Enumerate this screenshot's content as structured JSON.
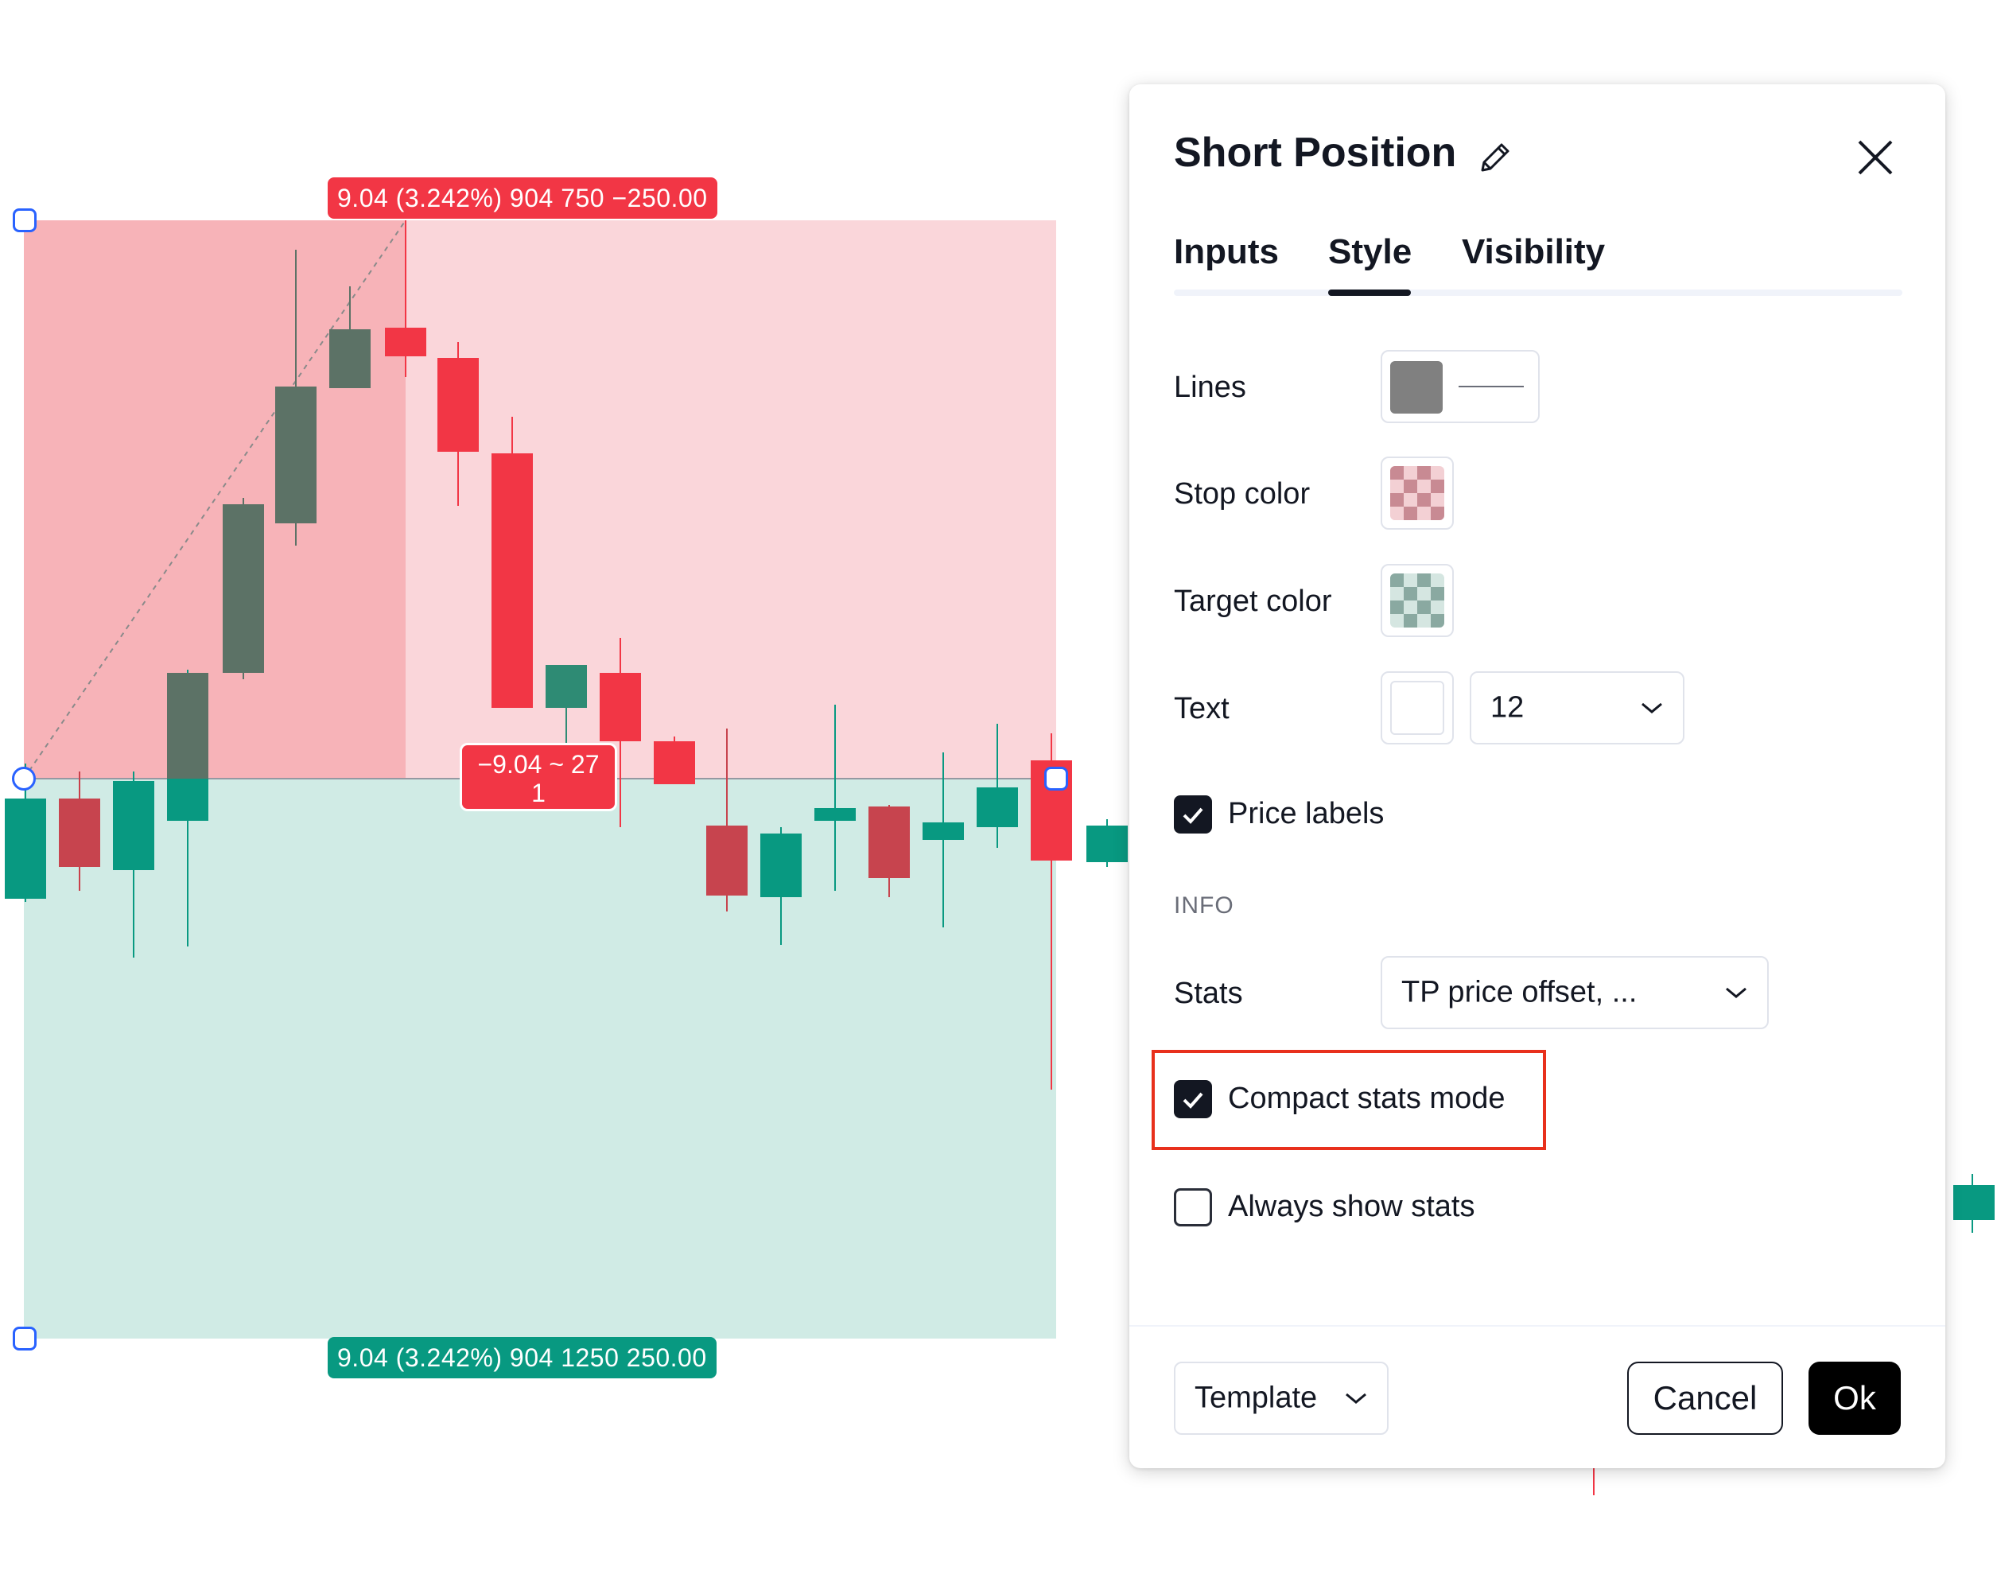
{
  "chart": {
    "stop_label": "9.04 (3.242%) 904 750 −250.00",
    "target_label": "9.04 (3.242%) 904 1250 250.00",
    "center_label_line1": "−9.04 ~ 27",
    "center_label_line2": "1",
    "colors": {
      "stop_zone": "#f7b3b8",
      "stop_zone_light": "#fad6da",
      "target_zone": "#d0ebe5",
      "bull": "#089981",
      "bear": "#f23645",
      "handle": "#2962ff"
    }
  },
  "dialog": {
    "title": "Short Position",
    "edit_icon": "pencil-icon",
    "close_icon": "close-icon",
    "tabs": [
      {
        "label": "Inputs",
        "active": false
      },
      {
        "label": "Style",
        "active": true
      },
      {
        "label": "Visibility",
        "active": false
      }
    ],
    "lines_label": "Lines",
    "lines_color": "#808080",
    "stop_color_label": "Stop color",
    "stop_color": "#f23645",
    "target_color_label": "Target color",
    "target_color": "#089981",
    "text_label": "Text",
    "text_color": "#ffffff",
    "text_size": "12",
    "price_labels": {
      "label": "Price labels",
      "checked": true
    },
    "info_heading": "INFO",
    "stats_label": "Stats",
    "stats_value": "TP price offset, ...",
    "compact_stats": {
      "label": "Compact stats mode",
      "checked": true
    },
    "always_show_stats": {
      "label": "Always show stats",
      "checked": false
    },
    "template_label": "Template",
    "cancel_label": "Cancel",
    "ok_label": "Ok"
  }
}
